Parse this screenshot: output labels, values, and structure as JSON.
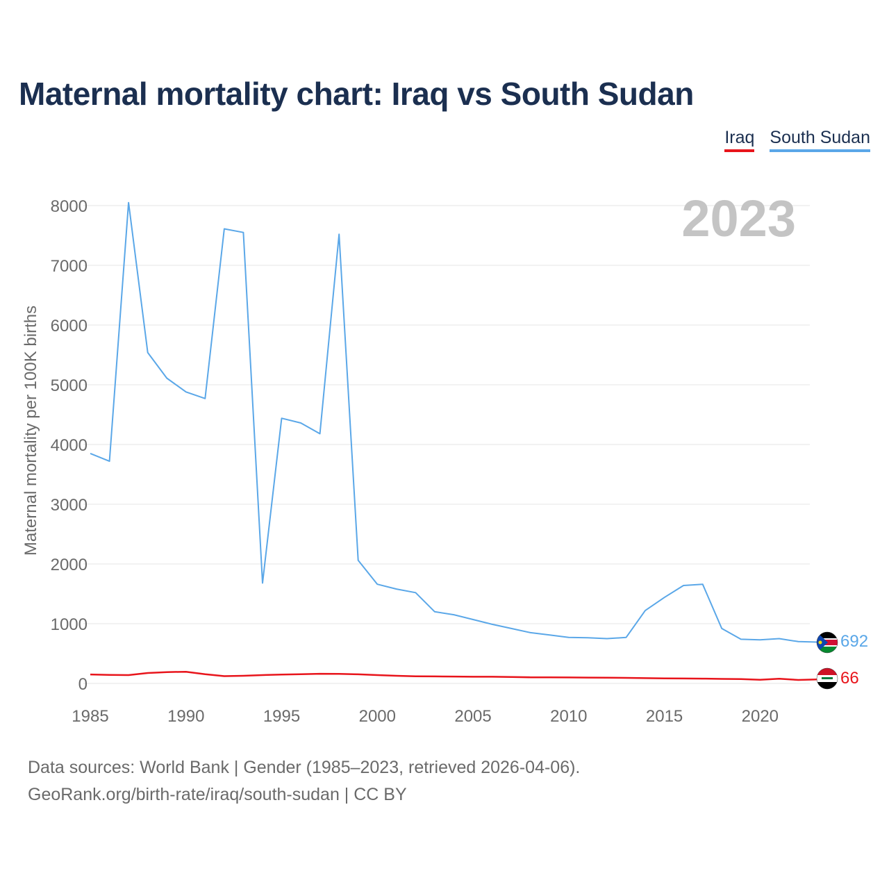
{
  "title": "Maternal mortality chart: Iraq vs South Sudan",
  "legend": {
    "iraq": "Iraq",
    "south_sudan": "South Sudan"
  },
  "year_label": "2023",
  "footer": {
    "line1": "Data sources: World Bank | Gender (1985–2023, retrieved 2026-04-06).",
    "line2": "GeoRank.org/birth-rate/iraq/south-sudan | CC BY"
  },
  "colors": {
    "iraq": "#e8141b",
    "south_sudan": "#5aa7e8",
    "grid": "#e6e6e6",
    "axis_text": "#6a6a6a",
    "year": "#c4c4c4"
  },
  "chart_data": {
    "type": "line",
    "ylabel": "Maternal mortality per 100K births",
    "xlabel": "",
    "xlim": [
      1985,
      2023
    ],
    "ylim": [
      0,
      8000
    ],
    "x_ticks": [
      1985,
      1990,
      1995,
      2000,
      2005,
      2010,
      2015,
      2020
    ],
    "y_ticks": [
      0,
      1000,
      2000,
      3000,
      4000,
      5000,
      6000,
      7000,
      8000
    ],
    "x": [
      1985,
      1986,
      1987,
      1988,
      1989,
      1990,
      1991,
      1992,
      1993,
      1994,
      1995,
      1996,
      1997,
      1998,
      1999,
      2000,
      2001,
      2002,
      2003,
      2004,
      2005,
      2006,
      2007,
      2008,
      2009,
      2010,
      2011,
      2012,
      2013,
      2014,
      2015,
      2016,
      2017,
      2018,
      2019,
      2020,
      2021,
      2022,
      2023
    ],
    "series": [
      {
        "name": "South Sudan",
        "key": "south_sudan",
        "end_label": "692",
        "values": [
          3850,
          3720,
          8050,
          5540,
          5110,
          4880,
          4770,
          7610,
          7550,
          1680,
          4440,
          4360,
          4180,
          7520,
          2060,
          1660,
          1580,
          1520,
          1200,
          1150,
          1070,
          990,
          920,
          850,
          810,
          770,
          765,
          750,
          770,
          1220,
          1440,
          1640,
          1660,
          920,
          740,
          730,
          750,
          700,
          692
        ]
      },
      {
        "name": "Iraq",
        "key": "iraq",
        "end_label": "66",
        "values": [
          150,
          143,
          140,
          175,
          190,
          195,
          155,
          122,
          128,
          140,
          148,
          155,
          162,
          160,
          152,
          140,
          128,
          120,
          118,
          115,
          112,
          112,
          108,
          102,
          102,
          100,
          98,
          95,
          93,
          88,
          85,
          83,
          80,
          75,
          73,
          62,
          78,
          58,
          66
        ]
      }
    ]
  }
}
